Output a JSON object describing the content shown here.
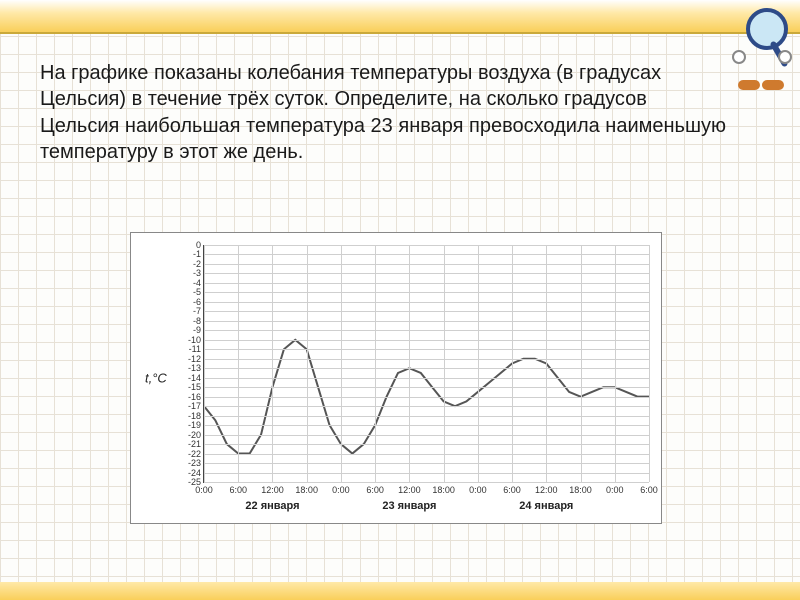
{
  "problem_text": "На графике показаны колебания температуры воздуха (в градусах Цельсия) в течение трёх суток. Определите, на сколько градусов Цельсия наибольшая температура 23 января превосходила наименьшую температуру в этот же день.",
  "chart": {
    "type": "line",
    "y_axis": {
      "title": "t,°C",
      "min": -25,
      "max": 0,
      "tick_step": 1,
      "tick_labels": [
        "0",
        "-1",
        "-2",
        "-3",
        "-4",
        "-5",
        "-6",
        "-7",
        "-8",
        "-9",
        "-10",
        "-11",
        "-12",
        "-13",
        "-14",
        "-15",
        "-16",
        "-17",
        "-18",
        "-19",
        "-20",
        "-21",
        "-22",
        "-23",
        "-24",
        "-25"
      ],
      "grid_color": "#cfcfcf",
      "label_fontsize": 9,
      "title_fontsize": 13
    },
    "x_axis": {
      "min": 0,
      "max": 78,
      "tick_hours": [
        0,
        6,
        12,
        18,
        24,
        30,
        36,
        42,
        48,
        54,
        60,
        66,
        72,
        78
      ],
      "tick_labels": [
        "0:00",
        "6:00",
        "12:00",
        "18:00",
        "0:00",
        "6:00",
        "12:00",
        "18:00",
        "0:00",
        "6:00",
        "12:00",
        "18:00",
        "0:00",
        "6:00"
      ],
      "day_labels": [
        {
          "hour": 12,
          "text": "22 января"
        },
        {
          "hour": 36,
          "text": "23 января"
        },
        {
          "hour": 60,
          "text": "24 января"
        }
      ],
      "label_fontsize": 9,
      "daylabel_fontsize": 11
    },
    "series": {
      "color": "#555555",
      "line_width": 2,
      "points": [
        [
          0,
          -17
        ],
        [
          2,
          -18.5
        ],
        [
          4,
          -21
        ],
        [
          6,
          -22
        ],
        [
          8,
          -22
        ],
        [
          10,
          -20
        ],
        [
          12,
          -15
        ],
        [
          14,
          -11
        ],
        [
          16,
          -10
        ],
        [
          18,
          -11
        ],
        [
          20,
          -15
        ],
        [
          22,
          -19
        ],
        [
          24,
          -21
        ],
        [
          26,
          -22
        ],
        [
          28,
          -21
        ],
        [
          30,
          -19
        ],
        [
          32,
          -16
        ],
        [
          34,
          -13.5
        ],
        [
          36,
          -13
        ],
        [
          38,
          -13.5
        ],
        [
          40,
          -15
        ],
        [
          42,
          -16.5
        ],
        [
          44,
          -17
        ],
        [
          46,
          -16.5
        ],
        [
          48,
          -15.5
        ],
        [
          50,
          -14.5
        ],
        [
          52,
          -13.5
        ],
        [
          54,
          -12.5
        ],
        [
          56,
          -12
        ],
        [
          58,
          -12
        ],
        [
          60,
          -12.5
        ],
        [
          62,
          -14
        ],
        [
          64,
          -15.5
        ],
        [
          66,
          -16
        ],
        [
          68,
          -15.5
        ],
        [
          70,
          -15
        ],
        [
          72,
          -15
        ],
        [
          74,
          -15.5
        ],
        [
          76,
          -16
        ],
        [
          78,
          -16
        ]
      ]
    },
    "background_color": "#ffffff",
    "border_color": "#888888"
  }
}
